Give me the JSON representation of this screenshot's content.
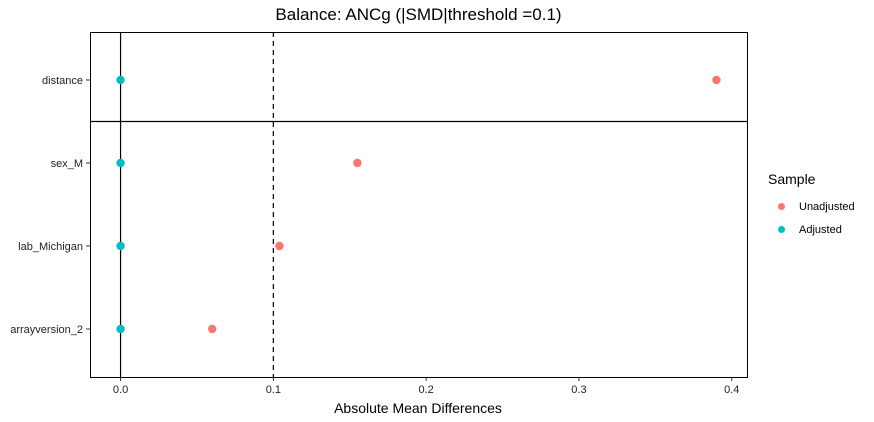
{
  "chart_data": {
    "type": "scatter",
    "title": "Balance: ANCg (|SMD|threshold =0.1)",
    "xlabel": "Absolute Mean Differences",
    "ylabel": "",
    "xlim": [
      -0.02,
      0.41
    ],
    "x_ticks": [
      0.0,
      0.1,
      0.2,
      0.3,
      0.4
    ],
    "x_tick_labels": [
      "0.0",
      "0.1",
      "0.2",
      "0.3",
      "0.4"
    ],
    "categories": [
      "distance",
      "sex_M",
      "lab_Michigan",
      "arrayversion_2"
    ],
    "series": [
      {
        "name": "Unadjusted",
        "color": "#F8766D",
        "values": [
          0.39,
          0.155,
          0.104,
          0.06
        ]
      },
      {
        "name": "Adjusted",
        "color": "#00BFC4",
        "values": [
          0.0,
          0.0,
          0.0,
          0.0
        ]
      }
    ],
    "threshold": 0.1,
    "legend_title": "Sample",
    "legend_position": "right",
    "grid": false
  }
}
